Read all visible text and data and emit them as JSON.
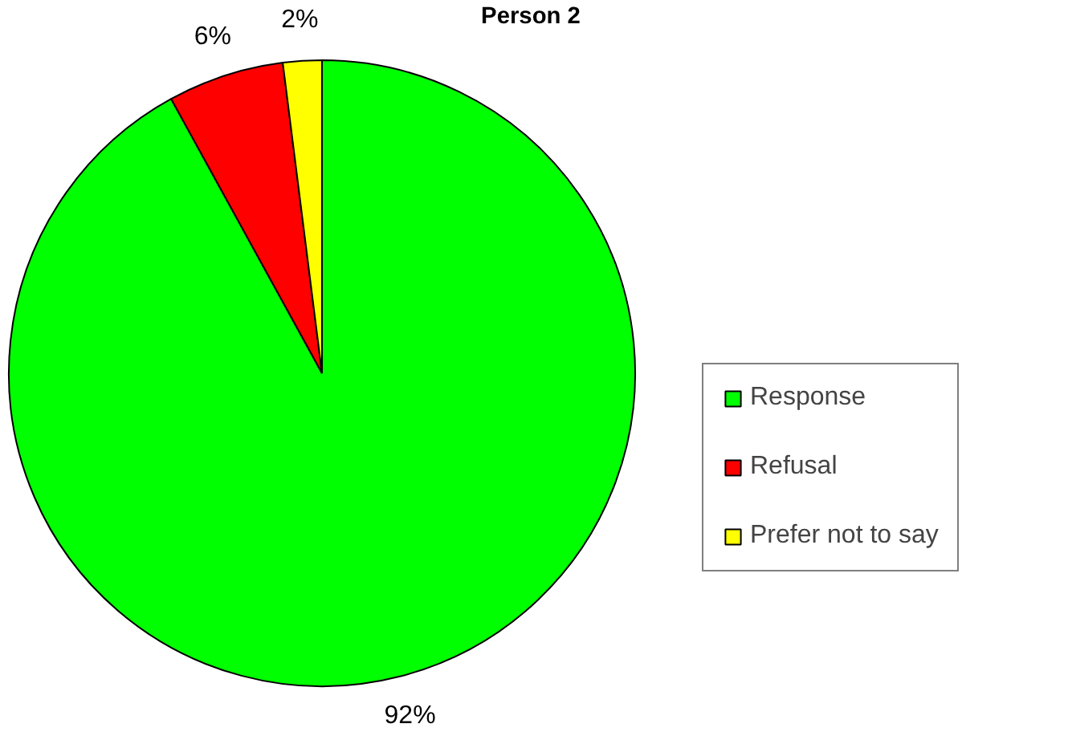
{
  "chart_data": {
    "type": "pie",
    "title": "Person 2",
    "categories": [
      "Response",
      "Refusal",
      "Prefer not to say"
    ],
    "values": [
      92,
      6,
      2
    ],
    "colors": [
      "#00ff00",
      "#ff0000",
      "#ffff00"
    ],
    "value_labels": [
      "92%",
      "6%",
      "2%"
    ],
    "legend": "right"
  }
}
